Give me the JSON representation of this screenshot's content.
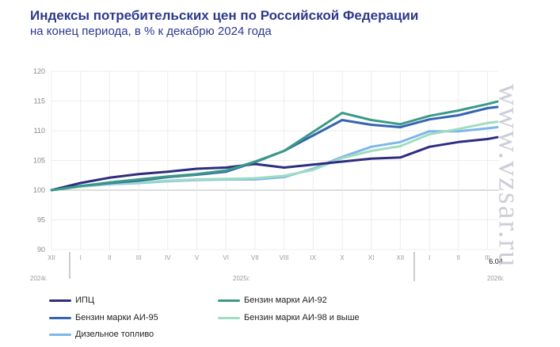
{
  "title": "Индексы потребительских цен по Российской Федерации",
  "subtitle": "на конец периода, в % к декабрю 2024 года",
  "watermark": "www.vzsar.ru",
  "chart_data": {
    "type": "line",
    "x": [
      "XII",
      "I",
      "II",
      "III",
      "IV",
      "V",
      "VI",
      "VII",
      "VIII",
      "IX",
      "X",
      "XI",
      "XII",
      "I",
      "II",
      "III",
      "6.04"
    ],
    "year_labels": [
      "2024г.",
      "2025г.",
      "2026г."
    ],
    "ylim": [
      90,
      120
    ],
    "yticks": [
      90,
      95,
      100,
      105,
      110,
      115,
      120
    ],
    "grid": true,
    "legend_position": "bottom",
    "series": [
      {
        "name": "ИПЦ",
        "color": "#2e2d7f",
        "values": [
          100,
          101.2,
          102.1,
          102.7,
          103.1,
          103.6,
          103.8,
          104.4,
          103.8,
          104.3,
          104.8,
          105.3,
          105.5,
          107.3,
          108.1,
          108.6,
          108.9
        ]
      },
      {
        "name": "Бензин марки АИ-92",
        "color": "#3a9a86",
        "values": [
          100,
          100.7,
          101.3,
          101.8,
          102.3,
          102.7,
          103.3,
          104.8,
          106.6,
          109.8,
          113.0,
          111.8,
          111.1,
          112.5,
          113.4,
          114.5,
          114.9
        ]
      },
      {
        "name": "Бензин марки АИ-95",
        "color": "#3565b0",
        "values": [
          100,
          100.7,
          101.2,
          101.6,
          102.2,
          102.6,
          103.1,
          104.7,
          106.6,
          109.2,
          111.8,
          111.0,
          110.6,
          111.9,
          112.6,
          113.8,
          114.0
        ]
      },
      {
        "name": "Бензин марки АИ-98 и выше",
        "color": "#9fdcc2",
        "values": [
          100,
          100.6,
          101.1,
          101.3,
          101.6,
          101.8,
          101.9,
          102.0,
          102.4,
          103.4,
          105.4,
          106.6,
          107.4,
          109.4,
          110.3,
          111.3,
          111.5
        ]
      },
      {
        "name": "Дизельное топливо",
        "color": "#7db6ea",
        "values": [
          100,
          100.6,
          101.0,
          101.2,
          101.5,
          101.7,
          101.8,
          101.8,
          102.2,
          103.6,
          105.6,
          107.3,
          108.1,
          109.9,
          109.9,
          110.4,
          110.6
        ]
      }
    ]
  }
}
